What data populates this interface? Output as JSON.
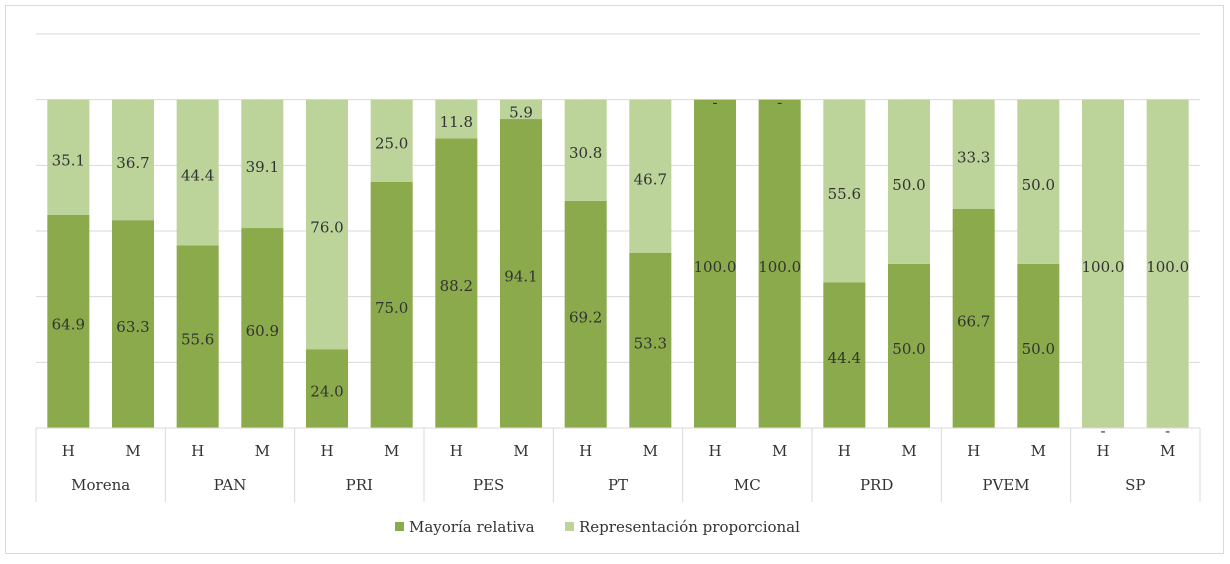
{
  "chart_data": {
    "type": "stacked_bar",
    "categories": [
      "H",
      "M",
      "H",
      "M",
      "H",
      "M",
      "H",
      "M",
      "H",
      "M",
      "H",
      "M",
      "H",
      "M",
      "H",
      "M",
      "H",
      "M"
    ],
    "groups": [
      "Morena",
      "PAN",
      "PRI",
      "PES",
      "PT",
      "MC",
      "PRD",
      "PVEM",
      "SP"
    ],
    "series": [
      {
        "name": "Mayoría relativa",
        "color": "#8aaa4b",
        "values": [
          64.9,
          63.3,
          55.6,
          60.9,
          24.0,
          75.0,
          88.2,
          94.1,
          69.2,
          53.3,
          100,
          100,
          44.4,
          50,
          66.7,
          50,
          0,
          0
        ],
        "value_labels": [
          "64.9",
          "63.3",
          "55.6",
          "60.9",
          "24.0",
          "75.0",
          "88.2",
          "94.1",
          "69.2",
          "53.3",
          "100.0",
          "100.0",
          "44.4",
          "50.0",
          "66.7",
          "50.0",
          "-",
          "-"
        ]
      },
      {
        "name": "Representación proporcional",
        "color": "#bcd39a",
        "values": [
          35.1,
          36.7,
          44.4,
          39.1,
          76.0,
          25.0,
          11.8,
          5.9,
          30.8,
          46.7,
          0,
          0,
          55.6,
          50,
          33.3,
          50,
          100,
          100
        ],
        "value_labels": [
          "35.1",
          "36.7",
          "44.4",
          "39.1",
          "76.0",
          "25.0",
          "11.8",
          "5.9",
          "30.8",
          "46.7",
          "-",
          "-",
          "55.6",
          "50.0",
          "33.3",
          "50.0",
          "100.0",
          "100.0"
        ]
      }
    ],
    "ylim": [
      0,
      120
    ],
    "yticks": [
      0,
      20,
      40,
      60,
      80,
      100,
      120
    ],
    "grid": true,
    "legend": "bottom"
  }
}
